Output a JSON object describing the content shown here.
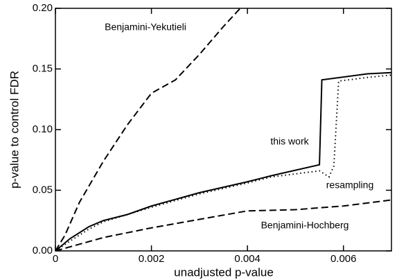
{
  "chart_data": {
    "type": "line",
    "xlabel": "unadjusted p-value",
    "ylabel": "p-value to control FDR",
    "xlim": [
      0,
      0.007
    ],
    "ylim": [
      0,
      0.2
    ],
    "xticks": [
      0,
      0.002,
      0.004,
      0.006
    ],
    "yticks": [
      {
        "value": 0,
        "label": "0.00"
      },
      {
        "value": 0.05,
        "label": "0.05"
      },
      {
        "value": 0.1,
        "label": "0.10"
      },
      {
        "value": 0.15,
        "label": "0.15"
      },
      {
        "value": 0.2,
        "label": "0.20"
      }
    ],
    "series": [
      {
        "name": "Benjamini-Yekutieli",
        "color": "#000000",
        "linestyle": "dashed",
        "x": [
          0,
          0.0002,
          0.0005,
          0.001,
          0.0015,
          0.002,
          0.0025,
          0.003,
          0.0035,
          0.00385
        ],
        "values": [
          0,
          0.013,
          0.04,
          0.074,
          0.104,
          0.13,
          0.141,
          0.162,
          0.185,
          0.2
        ]
      },
      {
        "name": "this work",
        "color": "#000000",
        "linestyle": "solid",
        "x": [
          0,
          0.0003,
          0.0007,
          0.001,
          0.0015,
          0.002,
          0.003,
          0.004,
          0.0045,
          0.0055,
          0.00555,
          0.0065,
          0.007
        ],
        "values": [
          0,
          0.01,
          0.02,
          0.025,
          0.03,
          0.037,
          0.048,
          0.057,
          0.062,
          0.071,
          0.141,
          0.146,
          0.147
        ]
      },
      {
        "name": "resampling",
        "color": "#000000",
        "linestyle": "dotted",
        "x": [
          0,
          0.0003,
          0.0007,
          0.001,
          0.0015,
          0.002,
          0.003,
          0.004,
          0.0045,
          0.0055,
          0.0057,
          0.0058,
          0.0059,
          0.0065,
          0.007
        ],
        "values": [
          0,
          0.008,
          0.018,
          0.024,
          0.03,
          0.036,
          0.047,
          0.056,
          0.061,
          0.066,
          0.061,
          0.07,
          0.14,
          0.143,
          0.145
        ]
      },
      {
        "name": "Benjamini-Hochberg",
        "color": "#000000",
        "linestyle": "dashed",
        "x": [
          0,
          0.001,
          0.002,
          0.003,
          0.004,
          0.005,
          0.006,
          0.007
        ],
        "values": [
          0,
          0.011,
          0.019,
          0.026,
          0.033,
          0.034,
          0.037,
          0.042
        ]
      }
    ]
  }
}
